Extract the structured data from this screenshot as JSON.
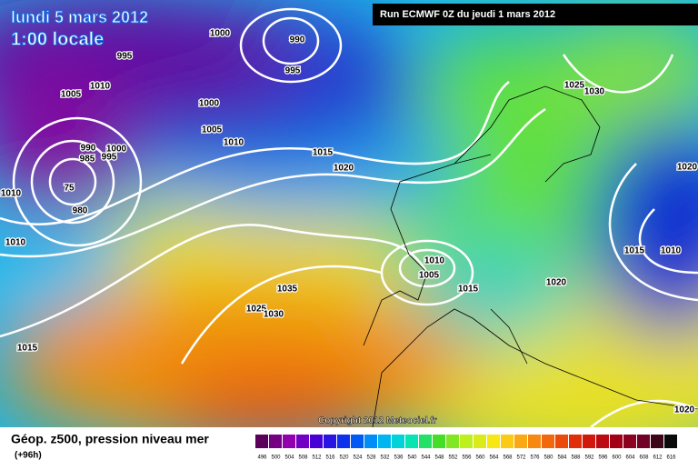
{
  "header": {
    "date": "lundi 5 mars 2012",
    "time": "1:00 locale",
    "run": "Run ECMWF 0Z du jeudi 1 mars 2012"
  },
  "footer": {
    "title": "Géop. z500, pression niveau mer",
    "lead": "(+96h)",
    "copyright": "Copyright 2012 Meteociel.fr"
  },
  "isobar_labels": [
    "1000",
    "990",
    "995",
    "995",
    "1010",
    "1005",
    "1000",
    "1005",
    "1010",
    "990",
    "1000",
    "985",
    "995",
    "1015",
    "1020",
    "1010",
    "75",
    "980",
    "1010",
    "1035",
    "1025",
    "1030",
    "1010",
    "1005",
    "1015",
    "1020",
    "1025",
    "1030",
    "1020",
    "1015",
    "1010",
    "1015",
    "1020"
  ],
  "scale": {
    "labels": [
      496,
      500,
      504,
      508,
      512,
      516,
      520,
      524,
      528,
      532,
      536,
      540,
      544,
      548,
      552,
      556,
      560,
      564,
      568,
      572,
      576,
      580,
      584,
      588,
      592,
      596,
      600,
      604,
      608,
      612,
      616
    ]
  }
}
